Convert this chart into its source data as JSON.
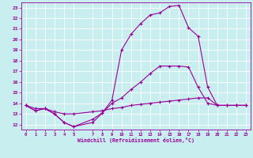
{
  "xlabel": "Windchill (Refroidissement éolien,°C)",
  "bg_color": "#c8eef0",
  "grid_color": "#ffffff",
  "line_color": "#990099",
  "xlim": [
    -0.5,
    23.5
  ],
  "ylim": [
    11.5,
    23.5
  ],
  "xticks": [
    0,
    1,
    2,
    3,
    4,
    5,
    7,
    8,
    9,
    10,
    11,
    12,
    13,
    14,
    15,
    16,
    17,
    18,
    19,
    20,
    21,
    22,
    23
  ],
  "yticks": [
    12,
    13,
    14,
    15,
    16,
    17,
    18,
    19,
    20,
    21,
    22,
    23
  ],
  "line1_x": [
    0,
    1,
    2,
    3,
    4,
    5,
    7,
    8,
    9,
    10,
    11,
    12,
    13,
    14,
    15,
    16,
    17,
    18,
    19,
    20,
    21,
    22,
    23
  ],
  "line1_y": [
    13.8,
    13.3,
    13.5,
    13.0,
    12.2,
    11.8,
    12.2,
    13.1,
    14.3,
    19.0,
    20.5,
    21.5,
    22.3,
    22.5,
    23.1,
    23.2,
    21.1,
    20.3,
    15.5,
    13.8,
    13.8,
    13.8,
    13.8
  ],
  "line2_x": [
    0,
    1,
    2,
    3,
    4,
    5,
    7,
    8,
    9,
    10,
    11,
    12,
    13,
    14,
    15,
    16,
    17,
    18,
    19,
    20,
    21,
    22,
    23
  ],
  "line2_y": [
    13.8,
    13.3,
    13.5,
    13.0,
    12.2,
    11.8,
    12.5,
    13.1,
    14.0,
    14.5,
    15.3,
    16.0,
    16.8,
    17.5,
    17.5,
    17.5,
    17.4,
    15.5,
    14.0,
    13.8,
    13.8,
    13.8,
    13.8
  ],
  "line3_x": [
    0,
    1,
    2,
    3,
    4,
    5,
    7,
    8,
    9,
    10,
    11,
    12,
    13,
    14,
    15,
    16,
    17,
    18,
    19,
    20,
    21,
    22,
    23
  ],
  "line3_y": [
    13.8,
    13.5,
    13.5,
    13.2,
    13.0,
    13.0,
    13.2,
    13.3,
    13.5,
    13.6,
    13.8,
    13.9,
    14.0,
    14.1,
    14.2,
    14.3,
    14.4,
    14.5,
    14.5,
    13.8,
    13.8,
    13.8,
    13.8
  ],
  "marker": "+",
  "markersize": 3,
  "linewidth": 0.8
}
